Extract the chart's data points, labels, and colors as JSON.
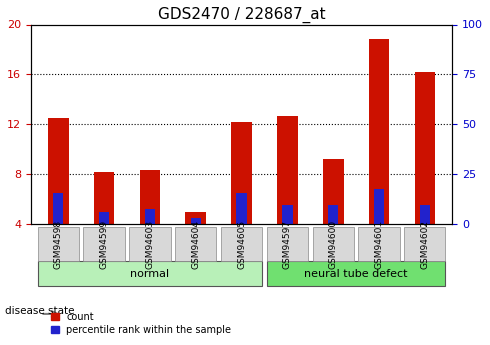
{
  "title": "GDS2470 / 228687_at",
  "samples": [
    "GSM94598",
    "GSM94599",
    "GSM94603",
    "GSM94604",
    "GSM94605",
    "GSM94597",
    "GSM94600",
    "GSM94601",
    "GSM94602"
  ],
  "count_values": [
    12.5,
    8.2,
    8.3,
    5.0,
    12.2,
    12.7,
    9.2,
    18.8,
    16.2
  ],
  "percentile_values": [
    6.5,
    5.0,
    5.2,
    4.5,
    6.5,
    5.5,
    5.5,
    6.8,
    5.5
  ],
  "bar_bottom": 4.0,
  "groups": [
    {
      "label": "normal",
      "start": 0,
      "end": 5,
      "color": "#b8f0b8"
    },
    {
      "label": "neural tube defect",
      "start": 5,
      "end": 9,
      "color": "#70e070"
    }
  ],
  "ylim": [
    4,
    20
  ],
  "yticks": [
    4,
    8,
    12,
    16,
    20
  ],
  "y2lim": [
    0,
    100
  ],
  "y2ticks": [
    0,
    25,
    50,
    75,
    100
  ],
  "left_ylabel_color": "#cc0000",
  "right_ylabel_color": "#0000cc",
  "bar_color_red": "#cc1100",
  "bar_color_blue": "#2222cc",
  "disease_state_label": "disease state",
  "legend_count": "count",
  "legend_percentile": "percentile rank within the sample",
  "background_color": "#ffffff",
  "plot_bg_color": "#ffffff",
  "tick_label_bg": "#d8d8d8",
  "grid_color": "#000000",
  "title_fontsize": 11,
  "tick_fontsize": 8,
  "label_fontsize": 8
}
